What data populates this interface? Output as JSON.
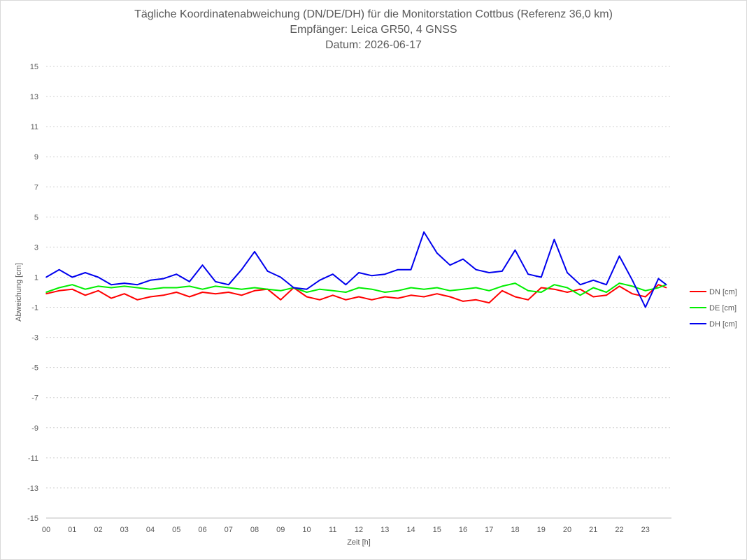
{
  "chart_data": {
    "type": "line",
    "title": "Tägliche Koordinatenabweichung (DN/DE/DH) für die Monitorstation Cottbus (Referenz 36,0 km)",
    "subtitle": "Empfänger: Leica GR50, 4 GNSS",
    "date_line": "Datum: 2026-06-17",
    "xlabel": "Zeit [h]",
    "ylabel": "Abweichung [cm]",
    "xlim": [
      0,
      24
    ],
    "ylim": [
      -15,
      15
    ],
    "x_ticks": [
      "00",
      "01",
      "02",
      "03",
      "04",
      "05",
      "06",
      "07",
      "08",
      "09",
      "10",
      "11",
      "12",
      "13",
      "14",
      "15",
      "16",
      "17",
      "18",
      "19",
      "20",
      "21",
      "22",
      "23"
    ],
    "y_ticks": [
      "15",
      "13",
      "11",
      "9",
      "7",
      "5",
      "3",
      "1",
      "-1",
      "-3",
      "-5",
      "-7",
      "-9",
      "-11",
      "-13",
      "-15"
    ],
    "grid": "horizontal dotted",
    "legend_position": "right",
    "x": [
      0,
      0.5,
      1,
      1.5,
      2,
      2.5,
      3,
      3.5,
      4,
      4.5,
      5,
      5.5,
      6,
      6.5,
      7,
      7.5,
      8,
      8.5,
      9,
      9.5,
      10,
      10.5,
      11,
      11.5,
      12,
      12.5,
      13,
      13.5,
      14,
      14.5,
      15,
      15.5,
      16,
      16.5,
      17,
      17.5,
      18,
      18.5,
      19,
      19.5,
      20,
      20.5,
      21,
      21.5,
      22,
      22.5,
      23,
      23.5,
      23.8
    ],
    "series": [
      {
        "name": "DN [cm]",
        "color": "#ff0000",
        "values": [
          -0.1,
          0.1,
          0.2,
          -0.2,
          0.1,
          -0.4,
          -0.1,
          -0.5,
          -0.3,
          -0.2,
          0.0,
          -0.3,
          0.0,
          -0.1,
          0.0,
          -0.2,
          0.1,
          0.2,
          -0.5,
          0.3,
          -0.3,
          -0.5,
          -0.2,
          -0.5,
          -0.3,
          -0.5,
          -0.3,
          -0.4,
          -0.2,
          -0.3,
          -0.1,
          -0.3,
          -0.6,
          -0.5,
          -0.7,
          0.1,
          -0.3,
          -0.5,
          0.3,
          0.2,
          0.0,
          0.2,
          -0.3,
          -0.2,
          0.4,
          -0.1,
          -0.3,
          0.5,
          0.3
        ]
      },
      {
        "name": "DE [cm]",
        "color": "#00ee00",
        "values": [
          0.0,
          0.3,
          0.5,
          0.2,
          0.4,
          0.3,
          0.4,
          0.3,
          0.2,
          0.3,
          0.3,
          0.4,
          0.2,
          0.4,
          0.3,
          0.2,
          0.3,
          0.2,
          0.1,
          0.3,
          0.0,
          0.2,
          0.1,
          0.0,
          0.3,
          0.2,
          0.0,
          0.1,
          0.3,
          0.2,
          0.3,
          0.1,
          0.2,
          0.3,
          0.1,
          0.4,
          0.6,
          0.1,
          0.0,
          0.5,
          0.3,
          -0.2,
          0.3,
          0.0,
          0.6,
          0.4,
          0.1,
          0.3,
          0.5
        ]
      },
      {
        "name": "DH [cm]",
        "color": "#0000ee",
        "values": [
          1.0,
          1.5,
          1.0,
          1.3,
          1.0,
          0.5,
          0.6,
          0.5,
          0.8,
          0.9,
          1.2,
          0.7,
          1.8,
          0.7,
          0.5,
          1.5,
          2.7,
          1.4,
          1.0,
          0.3,
          0.2,
          0.8,
          1.2,
          0.5,
          1.3,
          1.1,
          1.2,
          1.5,
          1.5,
          4.0,
          2.6,
          1.8,
          2.2,
          1.5,
          1.3,
          1.4,
          2.8,
          1.2,
          1.0,
          3.5,
          1.3,
          0.5,
          0.8,
          0.5,
          2.4,
          0.8,
          -1.0,
          0.9,
          0.5
        ]
      }
    ]
  }
}
